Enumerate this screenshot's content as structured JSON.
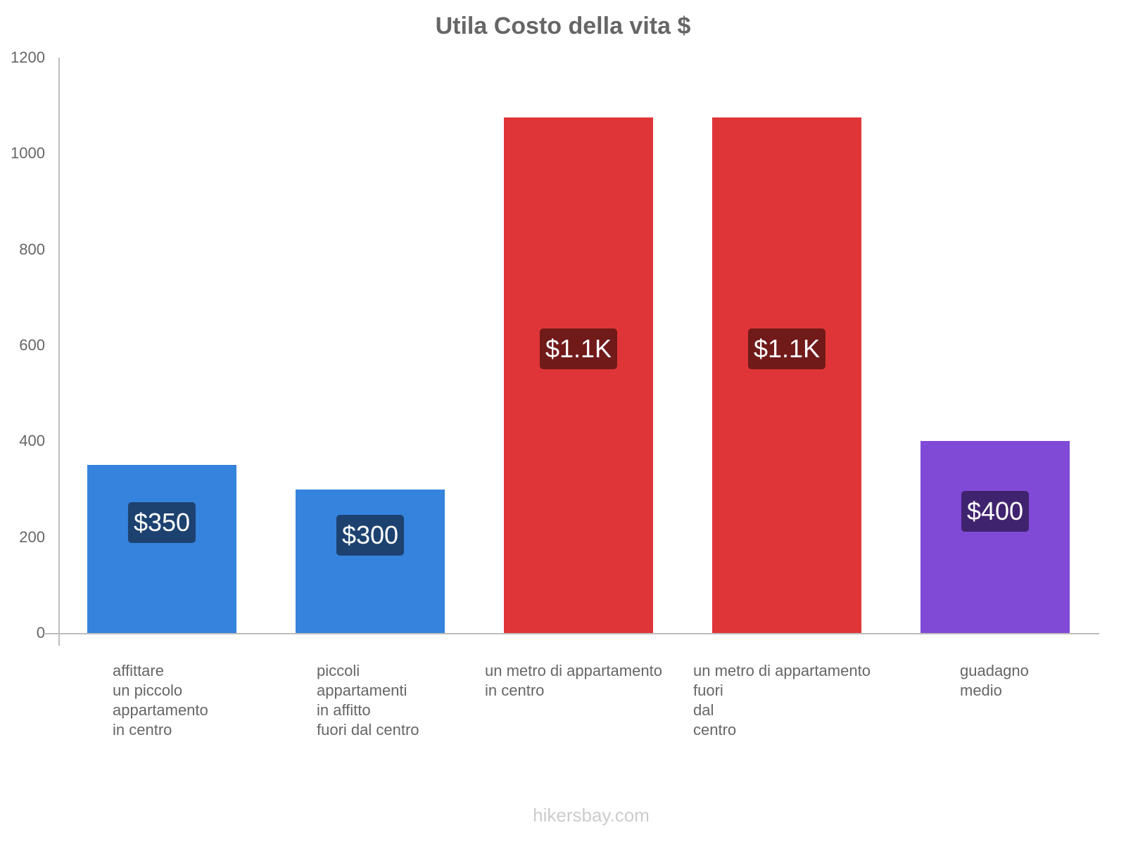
{
  "chart_data": {
    "type": "bar",
    "title": "Utila Costo della vita $",
    "categories": [
      "affittare un piccolo appartamento in centro",
      "piccoli appartamenti in affitto fuori dal centro",
      "un metro di appartamento in centro",
      "un metro di appartamento fuori dal centro",
      "guadagno medio"
    ],
    "values": [
      350,
      300,
      1075,
      1075,
      400
    ],
    "value_labels": [
      "$350",
      "$300",
      "$1.1K",
      "$1.1K",
      "$400"
    ],
    "colors": [
      "#3583dd",
      "#3583dd",
      "#e03538",
      "#e03538",
      "#8049d6"
    ],
    "label_bg_colors": [
      "#1d4270",
      "#1d4270",
      "#711a1a",
      "#711a1a",
      "#40236f"
    ],
    "xlabel": "",
    "ylabel": "",
    "ylim": [
      0,
      1200
    ],
    "yticks": [
      0,
      200,
      400,
      600,
      800,
      1000,
      1200
    ],
    "grid": false,
    "legend": null
  },
  "xlabels": [
    "affittare\nun piccolo\nappartamento\nin centro",
    "piccoli\nappartamenti\nin affitto\nfuori dal centro",
    "un metro di appartamento\nin centro",
    "un metro di appartamento\nfuori\ndal\ncentro",
    "guadagno\nmedio"
  ],
  "ytick_labels": [
    "0",
    "200",
    "400",
    "600",
    "800",
    "1000",
    "1200"
  ],
  "footer": "hikersbay.com"
}
